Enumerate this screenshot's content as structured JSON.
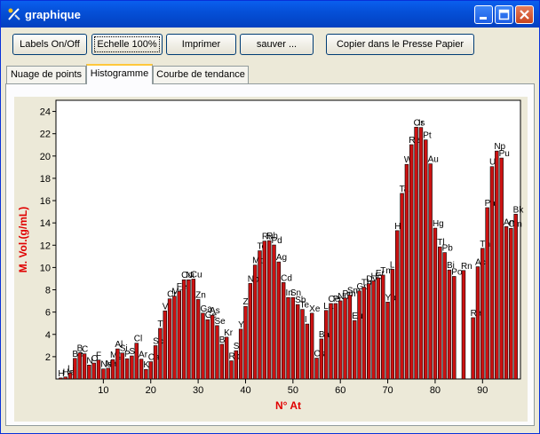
{
  "window": {
    "title": "graphique"
  },
  "toolbar": {
    "labels_btn": "Labels On/Off",
    "scale_btn": "Echelle 100%",
    "print_btn": "Imprimer",
    "save_btn": "sauver ...",
    "copy_btn": "Copier dans le Presse Papier"
  },
  "tabs": [
    {
      "label": "Nuage de points"
    },
    {
      "label": "Histogramme"
    },
    {
      "label": "Courbe de tendance"
    }
  ],
  "colors": {
    "bar": "#cc1111",
    "axis_label": "#e00000"
  },
  "chart_data": {
    "type": "bar",
    "xlabel": "N° At",
    "ylabel": "M. Vol.(g/mL)",
    "xlim": [
      0,
      98
    ],
    "ylim": [
      0,
      25
    ],
    "xticks": [
      10,
      20,
      30,
      40,
      50,
      60,
      70,
      80,
      90
    ],
    "yticks": [
      2,
      4,
      6,
      8,
      10,
      12,
      14,
      16,
      18,
      20,
      22,
      24
    ],
    "labels_on": true,
    "points": [
      {
        "z": 1,
        "el": "H",
        "v": 0.09
      },
      {
        "z": 2,
        "el": "He",
        "v": 0.18
      },
      {
        "z": 3,
        "el": "Li",
        "v": 0.53
      },
      {
        "z": 4,
        "el": "Be",
        "v": 1.85
      },
      {
        "z": 5,
        "el": "B",
        "v": 2.34
      },
      {
        "z": 6,
        "el": "C",
        "v": 2.26
      },
      {
        "z": 7,
        "el": "N",
        "v": 1.25
      },
      {
        "z": 8,
        "el": "O",
        "v": 1.43
      },
      {
        "z": 9,
        "el": "F",
        "v": 1.7
      },
      {
        "z": 10,
        "el": "Ne",
        "v": 0.9
      },
      {
        "z": 11,
        "el": "Na",
        "v": 0.97
      },
      {
        "z": 12,
        "el": "Mg",
        "v": 1.74
      },
      {
        "z": 13,
        "el": "Al",
        "v": 2.7
      },
      {
        "z": 14,
        "el": "Si",
        "v": 2.33
      },
      {
        "z": 15,
        "el": "P",
        "v": 1.82
      },
      {
        "z": 16,
        "el": "S",
        "v": 2.07
      },
      {
        "z": 17,
        "el": "Cl",
        "v": 3.21
      },
      {
        "z": 18,
        "el": "Ar",
        "v": 1.78
      },
      {
        "z": 19,
        "el": "K",
        "v": 0.86
      },
      {
        "z": 20,
        "el": "Ca",
        "v": 1.55
      },
      {
        "z": 21,
        "el": "Sc",
        "v": 2.99
      },
      {
        "z": 22,
        "el": "Ti",
        "v": 4.54
      },
      {
        "z": 23,
        "el": "V",
        "v": 6.11
      },
      {
        "z": 24,
        "el": "Cr",
        "v": 7.19
      },
      {
        "z": 25,
        "el": "Mn",
        "v": 7.43
      },
      {
        "z": 26,
        "el": "Fe",
        "v": 7.87
      },
      {
        "z": 27,
        "el": "Co",
        "v": 8.9
      },
      {
        "z": 28,
        "el": "Ni",
        "v": 8.9
      },
      {
        "z": 29,
        "el": "Cu",
        "v": 8.96
      },
      {
        "z": 30,
        "el": "Zn",
        "v": 7.13
      },
      {
        "z": 31,
        "el": "Ga",
        "v": 5.91
      },
      {
        "z": 32,
        "el": "Ge",
        "v": 5.32
      },
      {
        "z": 33,
        "el": "As",
        "v": 5.72
      },
      {
        "z": 34,
        "el": "Se",
        "v": 4.79
      },
      {
        "z": 35,
        "el": "Br",
        "v": 3.12
      },
      {
        "z": 36,
        "el": "Kr",
        "v": 3.75
      },
      {
        "z": 37,
        "el": "Rb",
        "v": 1.63
      },
      {
        "z": 38,
        "el": "Sr",
        "v": 2.54
      },
      {
        "z": 39,
        "el": "Y",
        "v": 4.47
      },
      {
        "z": 40,
        "el": "Zr",
        "v": 6.51
      },
      {
        "z": 41,
        "el": "Nb",
        "v": 8.57
      },
      {
        "z": 42,
        "el": "Mo",
        "v": 10.22
      },
      {
        "z": 43,
        "el": "Tc",
        "v": 11.5
      },
      {
        "z": 44,
        "el": "Ru",
        "v": 12.37
      },
      {
        "z": 45,
        "el": "Rh",
        "v": 12.41
      },
      {
        "z": 46,
        "el": "Pd",
        "v": 12.02
      },
      {
        "z": 47,
        "el": "Ag",
        "v": 10.5
      },
      {
        "z": 48,
        "el": "Cd",
        "v": 8.65
      },
      {
        "z": 49,
        "el": "In",
        "v": 7.31
      },
      {
        "z": 50,
        "el": "Sn",
        "v": 7.31
      },
      {
        "z": 51,
        "el": "Sb",
        "v": 6.68
      },
      {
        "z": 52,
        "el": "Te",
        "v": 6.24
      },
      {
        "z": 53,
        "el": "I",
        "v": 4.93
      },
      {
        "z": 54,
        "el": "Xe",
        "v": 5.9
      },
      {
        "z": 55,
        "el": "Cs",
        "v": 1.87
      },
      {
        "z": 56,
        "el": "Ba",
        "v": 3.59
      },
      {
        "z": 57,
        "el": "La",
        "v": 6.15
      },
      {
        "z": 58,
        "el": "Ce",
        "v": 6.77
      },
      {
        "z": 59,
        "el": "Pr",
        "v": 6.77
      },
      {
        "z": 60,
        "el": "Nd",
        "v": 7.01
      },
      {
        "z": 61,
        "el": "Pm",
        "v": 7.26
      },
      {
        "z": 62,
        "el": "Sm",
        "v": 7.52
      },
      {
        "z": 63,
        "el": "Eu",
        "v": 5.24
      },
      {
        "z": 64,
        "el": "Gd",
        "v": 7.9
      },
      {
        "z": 65,
        "el": "Tb",
        "v": 8.23
      },
      {
        "z": 66,
        "el": "Dy",
        "v": 8.55
      },
      {
        "z": 67,
        "el": "Ho",
        "v": 8.8
      },
      {
        "z": 68,
        "el": "Er",
        "v": 9.07
      },
      {
        "z": 69,
        "el": "Tm",
        "v": 9.32
      },
      {
        "z": 70,
        "el": "Yb",
        "v": 6.9
      },
      {
        "z": 71,
        "el": "Lu",
        "v": 9.84
      },
      {
        "z": 72,
        "el": "Hf",
        "v": 13.31
      },
      {
        "z": 73,
        "el": "Ta",
        "v": 16.65
      },
      {
        "z": 74,
        "el": "W",
        "v": 19.25
      },
      {
        "z": 75,
        "el": "Re",
        "v": 21.02
      },
      {
        "z": 76,
        "el": "Os",
        "v": 22.59
      },
      {
        "z": 77,
        "el": "Ir",
        "v": 22.56
      },
      {
        "z": 78,
        "el": "Pt",
        "v": 21.45
      },
      {
        "z": 79,
        "el": "Au",
        "v": 19.3
      },
      {
        "z": 80,
        "el": "Hg",
        "v": 13.53
      },
      {
        "z": 81,
        "el": "Tl",
        "v": 11.85
      },
      {
        "z": 82,
        "el": "Pb",
        "v": 11.34
      },
      {
        "z": 83,
        "el": "Bi",
        "v": 9.78
      },
      {
        "z": 84,
        "el": "Po",
        "v": 9.2
      },
      {
        "z": 86,
        "el": "Rn",
        "v": 9.73
      },
      {
        "z": 88,
        "el": "Ra",
        "v": 5.5
      },
      {
        "z": 89,
        "el": "Ac",
        "v": 10.07
      },
      {
        "z": 90,
        "el": "Th",
        "v": 11.72
      },
      {
        "z": 91,
        "el": "Pa",
        "v": 15.37
      },
      {
        "z": 92,
        "el": "U",
        "v": 19.05
      },
      {
        "z": 93,
        "el": "Np",
        "v": 20.45
      },
      {
        "z": 94,
        "el": "Pu",
        "v": 19.82
      },
      {
        "z": 95,
        "el": "Am",
        "v": 13.67
      },
      {
        "z": 96,
        "el": "Cm",
        "v": 13.51
      },
      {
        "z": 97,
        "el": "Bk",
        "v": 14.78
      }
    ]
  }
}
